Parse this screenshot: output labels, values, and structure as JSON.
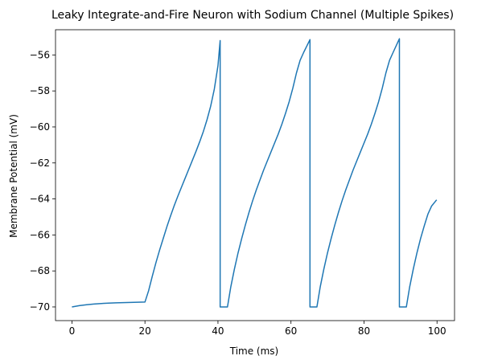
{
  "chart_data": {
    "type": "line",
    "title": "Leaky Integrate-and-Fire Neuron with Sodium Channel (Multiple Spikes)",
    "xlabel": "Time (ms)",
    "ylabel": "Membrane Potential (mV)",
    "xlim": [
      -4.5,
      104.8
    ],
    "ylim": [
      -70.76,
      -54.6
    ],
    "x_ticks": [
      0,
      20,
      40,
      60,
      80,
      100
    ],
    "y_ticks": [
      -70,
      -68,
      -66,
      -64,
      -62,
      -60,
      -58,
      -56
    ],
    "grid": false,
    "color": "#1f77b4",
    "series": [
      {
        "points": [
          [
            0,
            -70.0
          ],
          [
            2,
            -69.93
          ],
          [
            4,
            -69.88
          ],
          [
            6,
            -69.84
          ],
          [
            8,
            -69.81
          ],
          [
            10,
            -69.79
          ],
          [
            12,
            -69.77
          ],
          [
            14,
            -69.76
          ],
          [
            16,
            -69.75
          ],
          [
            18,
            -69.74
          ],
          [
            20,
            -69.73
          ],
          [
            21,
            -69.1
          ],
          [
            22,
            -68.3
          ],
          [
            23,
            -67.55
          ],
          [
            24,
            -66.85
          ],
          [
            25,
            -66.2
          ],
          [
            26,
            -65.55
          ],
          [
            27,
            -64.95
          ],
          [
            28,
            -64.38
          ],
          [
            29,
            -63.85
          ],
          [
            30,
            -63.35
          ],
          [
            31,
            -62.85
          ],
          [
            32,
            -62.35
          ],
          [
            33,
            -61.85
          ],
          [
            34,
            -61.35
          ],
          [
            35,
            -60.82
          ],
          [
            36,
            -60.25
          ],
          [
            37,
            -59.6
          ],
          [
            38,
            -58.85
          ],
          [
            39,
            -57.9
          ],
          [
            40,
            -56.6
          ],
          [
            40.6,
            -55.2
          ],
          [
            40.6,
            -70.0
          ],
          [
            42.6,
            -70.0
          ],
          [
            43.5,
            -68.9
          ],
          [
            44.5,
            -67.9
          ],
          [
            45.5,
            -67.0
          ],
          [
            46.5,
            -66.2
          ],
          [
            47.5,
            -65.45
          ],
          [
            48.5,
            -64.75
          ],
          [
            49.5,
            -64.1
          ],
          [
            50.5,
            -63.5
          ],
          [
            51.5,
            -62.95
          ],
          [
            52.5,
            -62.4
          ],
          [
            53.5,
            -61.9
          ],
          [
            54.5,
            -61.4
          ],
          [
            55.5,
            -60.9
          ],
          [
            56.5,
            -60.4
          ],
          [
            57.5,
            -59.85
          ],
          [
            58.5,
            -59.25
          ],
          [
            59.5,
            -58.6
          ],
          [
            60.5,
            -57.85
          ],
          [
            61.5,
            -57.0
          ],
          [
            62.5,
            -56.3
          ],
          [
            63.5,
            -55.85
          ],
          [
            65.2,
            -55.15
          ],
          [
            65.2,
            -70.0
          ],
          [
            67.1,
            -70.0
          ],
          [
            68,
            -68.9
          ],
          [
            69,
            -67.9
          ],
          [
            70,
            -67.0
          ],
          [
            71,
            -66.2
          ],
          [
            72,
            -65.45
          ],
          [
            73,
            -64.75
          ],
          [
            74,
            -64.1
          ],
          [
            75,
            -63.5
          ],
          [
            76,
            -62.95
          ],
          [
            77,
            -62.4
          ],
          [
            78,
            -61.9
          ],
          [
            79,
            -61.4
          ],
          [
            80,
            -60.9
          ],
          [
            81,
            -60.4
          ],
          [
            82,
            -59.85
          ],
          [
            83,
            -59.25
          ],
          [
            84,
            -58.6
          ],
          [
            85,
            -57.85
          ],
          [
            86,
            -57.0
          ],
          [
            87,
            -56.3
          ],
          [
            88,
            -55.85
          ],
          [
            89.7,
            -55.1
          ],
          [
            89.7,
            -70.0
          ],
          [
            91.6,
            -70.0
          ],
          [
            92.5,
            -68.9
          ],
          [
            93.5,
            -67.9
          ],
          [
            94.5,
            -67.0
          ],
          [
            95.5,
            -66.2
          ],
          [
            96.5,
            -65.5
          ],
          [
            97.5,
            -64.85
          ],
          [
            98.5,
            -64.4
          ],
          [
            99.9,
            -64.05
          ]
        ]
      }
    ]
  }
}
